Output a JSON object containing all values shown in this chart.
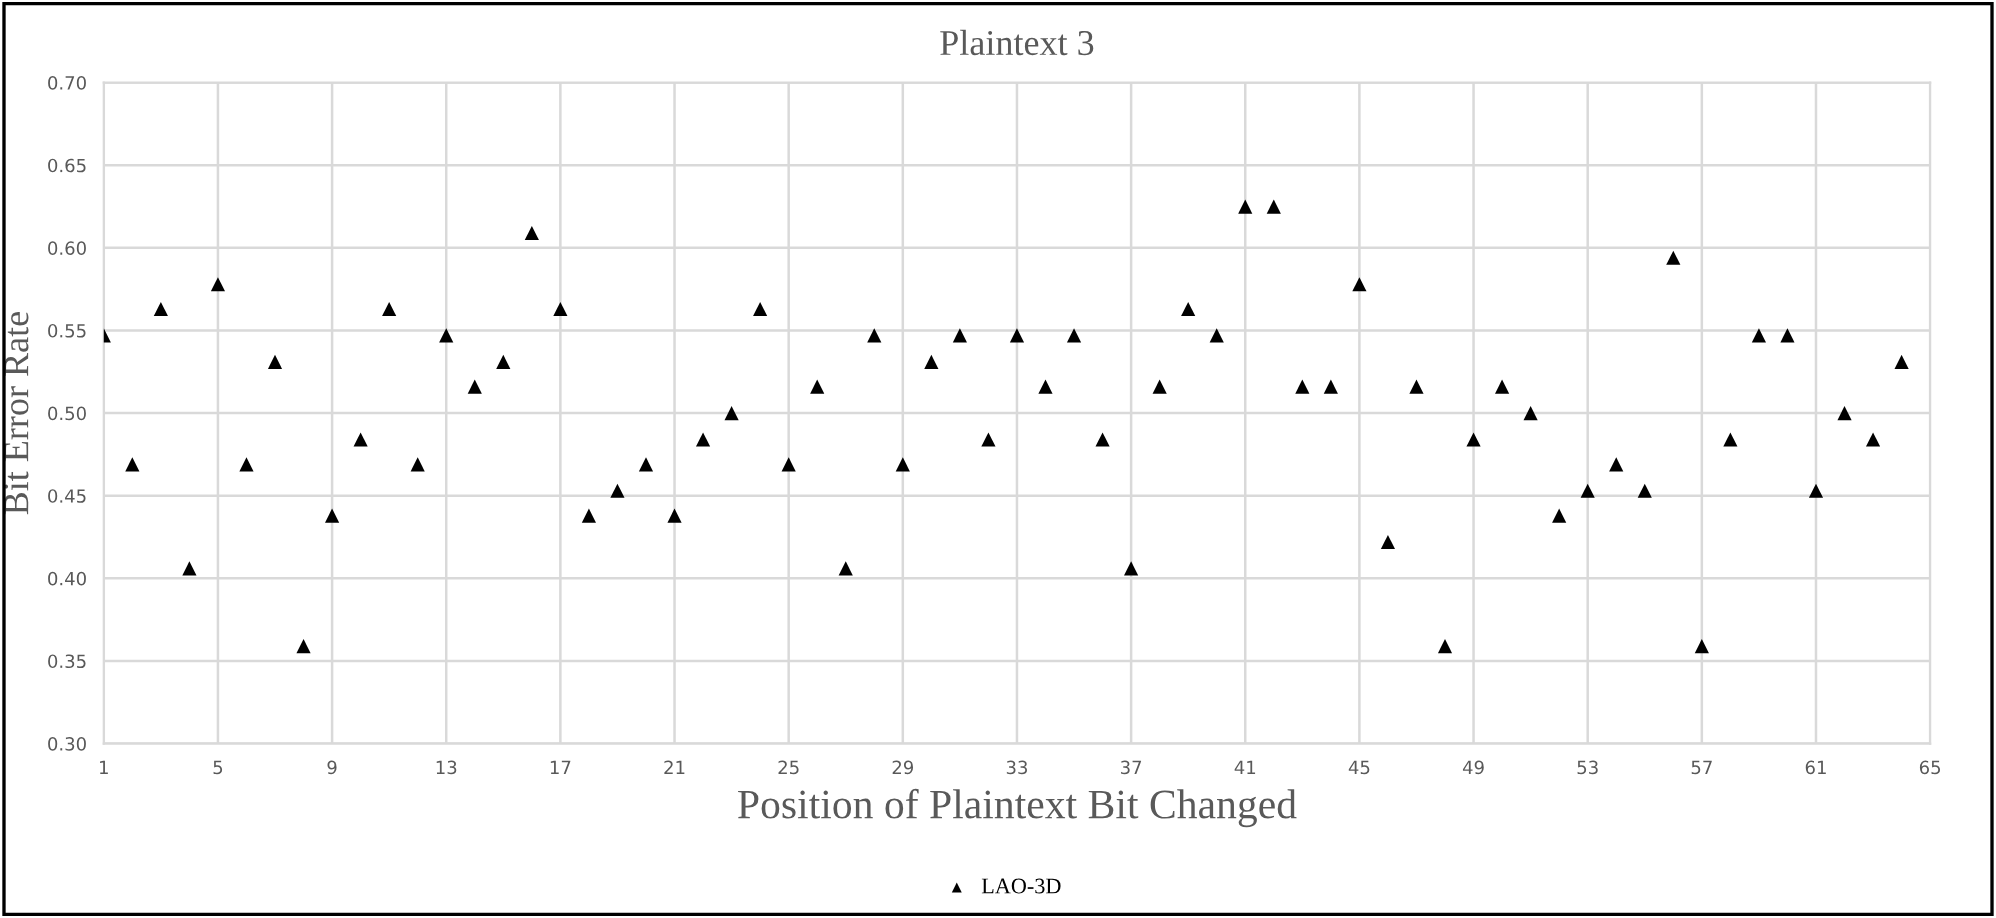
{
  "chart_data": {
    "type": "scatter",
    "title": "Plaintext 3",
    "xlabel": "Position of Plaintext Bit Changed",
    "ylabel": "Bit Error Rate",
    "x": [
      1,
      2,
      3,
      4,
      5,
      6,
      7,
      8,
      9,
      10,
      11,
      12,
      13,
      14,
      15,
      16,
      17,
      18,
      19,
      20,
      21,
      22,
      23,
      24,
      25,
      26,
      27,
      28,
      29,
      30,
      31,
      32,
      33,
      34,
      35,
      36,
      37,
      38,
      39,
      40,
      41,
      42,
      43,
      44,
      45,
      46,
      47,
      48,
      49,
      50,
      51,
      52,
      53,
      54,
      55,
      56,
      57,
      58,
      59,
      60,
      61,
      62,
      63,
      64
    ],
    "series": [
      {
        "name": "LAO-3D",
        "color": "#000000",
        "values": [
          0.547,
          0.469,
          0.563,
          0.406,
          0.578,
          0.469,
          0.531,
          0.359,
          0.438,
          0.484,
          0.563,
          0.469,
          0.547,
          0.516,
          0.531,
          0.609,
          0.563,
          0.438,
          0.453,
          0.469,
          0.438,
          0.484,
          0.5,
          0.563,
          0.469,
          0.516,
          0.406,
          0.547,
          0.469,
          0.531,
          0.547,
          0.484,
          0.547,
          0.516,
          0.547,
          0.484,
          0.406,
          0.516,
          0.563,
          0.547,
          0.625,
          0.625,
          0.516,
          0.516,
          0.578,
          0.422,
          0.516,
          0.359,
          0.484,
          0.516,
          0.5,
          0.438,
          0.453,
          0.469,
          0.453,
          0.594,
          0.359,
          0.484,
          0.547,
          0.547,
          0.453,
          0.5,
          0.484,
          0.531
        ]
      }
    ],
    "xlim": [
      1,
      65
    ],
    "xticks": [
      1,
      5,
      9,
      13,
      17,
      21,
      25,
      29,
      33,
      37,
      41,
      45,
      49,
      53,
      57,
      61,
      65
    ],
    "ylim": [
      0.3,
      0.7
    ],
    "yticks": [
      {
        "value": 0.3,
        "label": "0.30"
      },
      {
        "value": 0.35,
        "label": "0.35"
      },
      {
        "value": 0.4,
        "label": "0.40"
      },
      {
        "value": 0.45,
        "label": "0.45"
      },
      {
        "value": 0.5,
        "label": "0.50"
      },
      {
        "value": 0.55,
        "label": "0.55"
      },
      {
        "value": 0.6,
        "label": "0.60"
      },
      {
        "value": 0.65,
        "label": "0.65"
      },
      {
        "value": 0.7,
        "label": "0.70"
      }
    ],
    "grid": true,
    "legend": "bottom",
    "marker": "triangle"
  }
}
